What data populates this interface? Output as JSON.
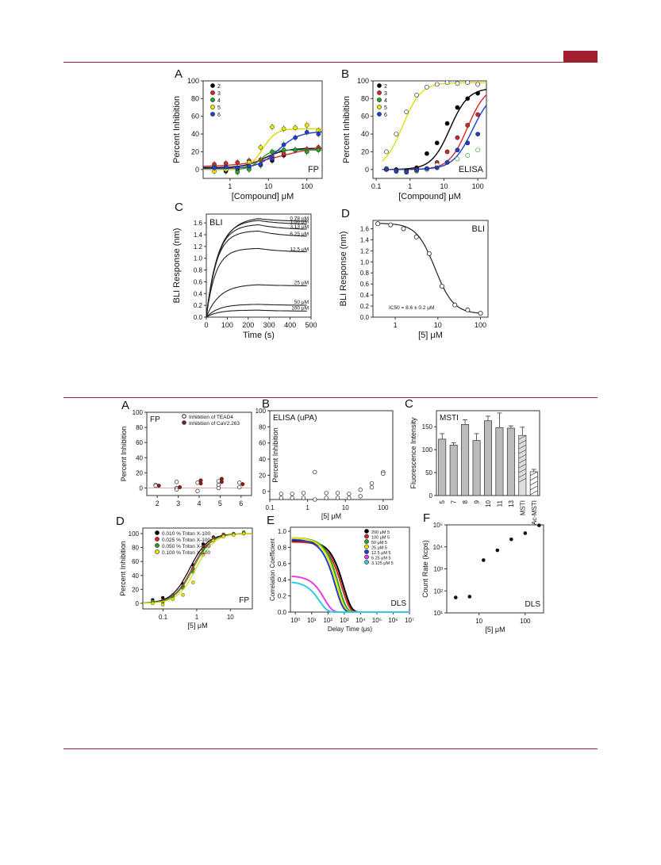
{
  "colors": {
    "accent": "#a11f2e",
    "rule": "#9b2335"
  },
  "figure_top": {
    "A": {
      "letter": "A",
      "ylabel": "Percent Inhibition",
      "xlabel": "[Compound] μM",
      "tag": "FP",
      "xticks": [
        "1",
        "10",
        "100"
      ],
      "yticks": [
        "0",
        "20",
        "40",
        "60",
        "80",
        "100"
      ],
      "legend": [
        "2",
        "3",
        "4",
        "5",
        "6"
      ]
    },
    "B": {
      "letter": "B",
      "ylabel": "Percent Inhibition",
      "xlabel": "[Compound] μM",
      "tag": "ELISA",
      "xticks": [
        "0.1",
        "1",
        "10",
        "100"
      ],
      "yticks": [
        "0",
        "20",
        "40",
        "60",
        "80",
        "100"
      ],
      "legend": [
        "2",
        "3",
        "4",
        "5",
        "6"
      ]
    },
    "C": {
      "letter": "C",
      "ylabel": "BLI Response (nm)",
      "xlabel": "Time (s)",
      "tag": "BLI",
      "xticks": [
        "0",
        "100",
        "200",
        "300",
        "400",
        "500"
      ],
      "yticks": [
        "0.0",
        "0.2",
        "0.4",
        "0.6",
        "0.8",
        "1.0",
        "1.2",
        "1.4",
        "1.6"
      ],
      "curve_labels": [
        "0.78 μM",
        "1.56 μM",
        "3.13 μM",
        "6.25 μM",
        "12.5 μM",
        "25 μM",
        "50 μM",
        "100 μM"
      ]
    },
    "D": {
      "letter": "D",
      "ylabel": "BLI Response (nm)",
      "xlabel": "[5] μM",
      "tag": "BLI",
      "xticks": [
        "1",
        "10",
        "100"
      ],
      "yticks": [
        "0.0",
        "0.2",
        "0.4",
        "0.6",
        "0.8",
        "1.0",
        "1.2",
        "1.4",
        "1.6"
      ],
      "annotation": "IC50 = 8.6 ± 0.2 μM"
    }
  },
  "figure_bottom": {
    "A": {
      "letter": "A",
      "ylabel": "Percent Inhibition",
      "tag": "FP",
      "xticks": [
        "2",
        "3",
        "4",
        "5",
        "6"
      ],
      "yticks": [
        "0",
        "20",
        "40",
        "60",
        "80",
        "100"
      ],
      "legend": [
        "Inhibition of TEAD4",
        "Inhibition of CaV2.263"
      ]
    },
    "B": {
      "letter": "B",
      "ylabel": "Percent Inhibition",
      "xlabel": "[5] μM",
      "tag": "ELISA (uPA)",
      "xticks": [
        "0.1",
        "1",
        "10",
        "100"
      ],
      "yticks": [
        "0",
        "20",
        "40",
        "60",
        "80",
        "100"
      ]
    },
    "C": {
      "letter": "C",
      "ylabel": "Fluorescence Intensity",
      "tag": "MSTI",
      "yticks": [
        "0",
        "50",
        "100",
        "150"
      ],
      "categories": [
        "5",
        "7",
        "8",
        "9",
        "10",
        "11",
        "13",
        "MSTI",
        "Ac-MSTI"
      ]
    },
    "D": {
      "letter": "D",
      "ylabel": "Percent Inhibition",
      "xlabel": "[5] μM",
      "tag": "FP",
      "xticks": [
        "0.1",
        "1",
        "10"
      ],
      "yticks": [
        "0",
        "20",
        "40",
        "60",
        "80",
        "100"
      ],
      "legend": [
        "0.010 % Triton X-100",
        "0.025 % Triton X-100",
        "0.050 % Triton X-100",
        "0.100 % Triton X-100"
      ]
    },
    "E": {
      "letter": "E",
      "ylabel": "Correlation Coefficient",
      "xlabel": "Delay Time (μs)",
      "tag": "DLS",
      "xticks": [
        "10⁰",
        "10¹",
        "10²",
        "10³",
        "10⁴",
        "10⁵",
        "10⁶",
        "10⁷"
      ],
      "yticks": [
        "0.0",
        "0.2",
        "0.4",
        "0.6",
        "0.8",
        "1.0"
      ],
      "legend": [
        "200 μM 5",
        "100 μM 5",
        "50 μM 5",
        "25 μM 5",
        "12.5 μM 5",
        "6.25 μM 5",
        "3.125 μM 5"
      ]
    },
    "F": {
      "letter": "F",
      "ylabel": "Count Rate (kcps)",
      "xlabel": "[5] μM",
      "tag": "DLS",
      "xticks": [
        "10",
        "100"
      ],
      "yticks": [
        "10¹",
        "10²",
        "10³",
        "10⁴",
        "10⁵"
      ]
    }
  },
  "chart_data": [
    {
      "id": "top-A",
      "type": "scatter",
      "xscale": "log",
      "xlim": [
        0.2,
        250
      ],
      "ylim": [
        -10,
        100
      ],
      "xlabel": "[Compound] μM",
      "ylabel": "Percent Inhibition",
      "series": [
        {
          "name": "2",
          "color": "#000000",
          "x": [
            0.39,
            0.78,
            1.56,
            3.13,
            6.25,
            12.5,
            25,
            50,
            100,
            200
          ],
          "y": [
            4,
            -2,
            0,
            2,
            5,
            10,
            16,
            22,
            22,
            24
          ]
        },
        {
          "name": "3",
          "color": "#d62728",
          "x": [
            0.39,
            0.78,
            1.56,
            3.13,
            6.25,
            12.5,
            25,
            50,
            100,
            200
          ],
          "y": [
            6,
            7,
            8,
            10,
            11,
            15,
            18,
            22,
            23,
            25
          ]
        },
        {
          "name": "4",
          "color": "#2ca02c",
          "x": [
            0.39,
            0.78,
            1.56,
            3.13,
            6.25,
            12.5,
            25,
            50,
            100,
            200
          ],
          "y": [
            3,
            0,
            -3,
            0,
            5,
            20,
            22,
            22,
            20,
            22
          ]
        },
        {
          "name": "5",
          "color": "#e8e800",
          "x": [
            0.39,
            0.78,
            1.56,
            3.13,
            6.25,
            12.5,
            25,
            50,
            100,
            200
          ],
          "y": [
            -2,
            0,
            2,
            8,
            25,
            48,
            46,
            47,
            50,
            44
          ]
        },
        {
          "name": "6",
          "color": "#1f3fd1",
          "x": [
            0.39,
            0.78,
            1.56,
            3.13,
            6.25,
            12.5,
            25,
            50,
            100,
            200
          ],
          "y": [
            2,
            3,
            2,
            4,
            6,
            12,
            28,
            36,
            42,
            40
          ]
        }
      ]
    },
    {
      "id": "top-B",
      "type": "scatter",
      "xscale": "log",
      "xlim": [
        0.08,
        180
      ],
      "ylim": [
        -10,
        100
      ],
      "xlabel": "[Compound] μM",
      "ylabel": "Percent Inhibition",
      "series": [
        {
          "name": "2",
          "color": "#000000",
          "x": [
            0.2,
            0.39,
            0.78,
            1.56,
            3.13,
            6.25,
            12.5,
            25,
            50,
            100
          ],
          "y": [
            0,
            0,
            -1,
            2,
            18,
            30,
            52,
            70,
            80,
            86
          ]
        },
        {
          "name": "3",
          "color": "#d62728",
          "x": [
            0.2,
            0.39,
            0.78,
            1.56,
            3.13,
            6.25,
            12.5,
            25,
            50,
            100
          ],
          "y": [
            0,
            -1,
            -2,
            0,
            1,
            8,
            20,
            36,
            50,
            62
          ]
        },
        {
          "name": "4",
          "color": "#2ca02c",
          "x": [
            0.2,
            0.39,
            0.78,
            1.56,
            3.13,
            6.25,
            12.5,
            25,
            50,
            100
          ],
          "y": [
            1,
            -2,
            -3,
            -2,
            0,
            5,
            8,
            12,
            16,
            22
          ]
        },
        {
          "name": "5",
          "color": "#e8e800",
          "x": [
            0.2,
            0.39,
            0.78,
            1.56,
            3.13,
            6.25,
            12.5,
            25,
            50,
            100
          ],
          "y": [
            20,
            40,
            65,
            84,
            93,
            96,
            98,
            97,
            98,
            96
          ]
        },
        {
          "name": "6",
          "color": "#1f3fd1",
          "x": [
            0.2,
            0.39,
            0.78,
            1.56,
            3.13,
            6.25,
            12.5,
            25,
            50,
            100
          ],
          "y": [
            1,
            -2,
            -3,
            -1,
            1,
            2,
            8,
            22,
            30,
            40
          ]
        }
      ]
    },
    {
      "id": "top-C",
      "type": "line",
      "xlim": [
        0,
        500
      ],
      "ylim": [
        0,
        1.75
      ],
      "xlabel": "Time (s)",
      "ylabel": "BLI Response (nm)",
      "series": [
        {
          "name": "0.78 μM",
          "plateau": 1.7,
          "end": 1.62
        },
        {
          "name": "1.56 μM",
          "plateau": 1.66,
          "end": 1.57
        },
        {
          "name": "3.13 μM",
          "plateau": 1.58,
          "end": 1.48
        },
        {
          "name": "6.25 μM",
          "plateau": 1.47,
          "end": 1.36
        },
        {
          "name": "12.5 μM",
          "plateau": 1.17,
          "end": 1.1
        },
        {
          "name": "25 μM",
          "plateau": 0.56,
          "end": 0.53
        },
        {
          "name": "50 μM",
          "plateau": 0.22,
          "end": 0.2
        },
        {
          "name": "100 μM",
          "plateau": 0.12,
          "end": 0.1
        }
      ]
    },
    {
      "id": "top-D",
      "type": "scatter",
      "xscale": "log",
      "xlim": [
        0.3,
        150
      ],
      "ylim": [
        0,
        1.75
      ],
      "xlabel": "[5] μM",
      "ylabel": "BLI Response (nm)",
      "x": [
        0.39,
        0.78,
        1.56,
        3.13,
        6.25,
        12.5,
        25,
        50,
        100
      ],
      "y": [
        1.69,
        1.67,
        1.6,
        1.45,
        1.15,
        0.56,
        0.22,
        0.13,
        0.07
      ]
    },
    {
      "id": "bottom-A",
      "type": "scatter",
      "xlim": [
        1.5,
        6.5
      ],
      "ylim": [
        -10,
        100
      ],
      "categories": [
        "2",
        "3",
        "4",
        "5",
        "6"
      ],
      "ylabel": "Percent Inhibition",
      "series": [
        {
          "name": "Inhibition of TEAD4",
          "x": [
            2,
            2,
            3,
            3,
            3,
            4,
            4,
            5,
            5,
            5,
            6,
            6
          ],
          "y": [
            4,
            3,
            8,
            0,
            -2,
            7,
            -4,
            9,
            4,
            0,
            7,
            1
          ]
        },
        {
          "name": "Inhibition of CaV2.263",
          "x": [
            2,
            3,
            4,
            4,
            5,
            5,
            6
          ],
          "y": [
            3,
            1,
            10,
            6,
            12,
            8,
            5
          ]
        }
      ]
    },
    {
      "id": "bottom-B",
      "type": "scatter",
      "xscale": "log",
      "xlim": [
        0.1,
        180
      ],
      "ylim": [
        -10,
        100
      ],
      "xlabel": "[5] μM",
      "ylabel": "Percent Inhibition",
      "x": [
        0.2,
        0.2,
        0.39,
        0.39,
        0.78,
        0.78,
        1.56,
        1.56,
        3.13,
        3.13,
        6.25,
        6.25,
        12.5,
        12.5,
        25,
        25,
        50,
        50,
        100,
        100
      ],
      "y": [
        -3,
        -8,
        -3,
        -8,
        -2,
        -8,
        24,
        -10,
        -2,
        -8,
        -2,
        -8,
        -3,
        -8,
        2,
        -6,
        10,
        5,
        24,
        22
      ]
    },
    {
      "id": "bottom-C",
      "type": "bar",
      "ylim": [
        0,
        185
      ],
      "ylabel": "Fluorescence Intensity",
      "categories": [
        "5",
        "7",
        "8",
        "9",
        "10",
        "11",
        "13",
        "MSTI",
        "Ac-MSTI"
      ],
      "values": [
        123,
        110,
        155,
        120,
        163,
        148,
        147,
        131,
        52
      ],
      "errors": [
        12,
        5,
        10,
        15,
        10,
        32,
        5,
        18,
        5
      ]
    },
    {
      "id": "bottom-D",
      "type": "scatter",
      "xscale": "log",
      "xlim": [
        0.025,
        45
      ],
      "ylim": [
        -8,
        108
      ],
      "xlabel": "[5] μM",
      "ylabel": "Percent Inhibition",
      "series": [
        {
          "name": "0.010 % Triton X-100",
          "color": "#000000",
          "x": [
            0.049,
            0.098,
            0.195,
            0.39,
            0.78,
            1.56,
            3.13,
            6.25,
            12.5,
            25
          ],
          "y": [
            5,
            8,
            12,
            28,
            55,
            85,
            95,
            98,
            99,
            100
          ]
        },
        {
          "name": "0.025 % Triton X-100",
          "color": "#d62728",
          "x": [
            0.049,
            0.098,
            0.195,
            0.39,
            0.78,
            1.56,
            3.13,
            6.25,
            12.5,
            25
          ],
          "y": [
            2,
            4,
            12,
            25,
            50,
            82,
            94,
            99,
            100,
            101
          ]
        },
        {
          "name": "0.050 % Triton X-100",
          "color": "#2ca02c",
          "x": [
            0.049,
            0.098,
            0.195,
            0.39,
            0.78,
            1.56,
            3.13,
            6.25,
            12.5,
            25
          ],
          "y": [
            3,
            2,
            10,
            22,
            45,
            78,
            92,
            97,
            100,
            102
          ]
        },
        {
          "name": "0.100 % Triton X-100",
          "color": "#e8e800",
          "x": [
            0.049,
            0.098,
            0.195,
            0.39,
            0.78,
            1.56,
            3.13,
            6.25,
            12.5,
            25
          ],
          "y": [
            0,
            -2,
            6,
            12,
            30,
            70,
            90,
            96,
            98,
            100
          ]
        }
      ]
    },
    {
      "id": "bottom-E",
      "type": "line",
      "xscale": "log",
      "xlim": [
        0.5,
        10000000.0
      ],
      "ylim": [
        0,
        1.05
      ],
      "xlabel": "Delay Time (μs)",
      "ylabel": "Correlation Coefficient",
      "series": [
        {
          "name": "200 μM 5",
          "color": "#000000",
          "amp": 0.88,
          "tau": 900
        },
        {
          "name": "100 μM 5",
          "color": "#d62728",
          "amp": 0.87,
          "tau": 700
        },
        {
          "name": "50 μM 5",
          "color": "#2ca02c",
          "amp": 0.92,
          "tau": 450
        },
        {
          "name": "25 μM 5",
          "color": "#e8e800",
          "amp": 0.92,
          "tau": 350
        },
        {
          "name": "12.5 μM 5",
          "color": "#1f3fd1",
          "amp": 0.9,
          "tau": 280
        },
        {
          "name": "6.25 μM 5",
          "color": "#e040e0",
          "amp": 0.45,
          "tau": 60
        },
        {
          "name": "3.125 μM 5",
          "color": "#33c8e8",
          "amp": 0.38,
          "tau": 30
        }
      ]
    },
    {
      "id": "bottom-F",
      "type": "scatter",
      "xscale": "log",
      "yscale": "log",
      "xlim": [
        2,
        250
      ],
      "ylim": [
        10,
        100000
      ],
      "xlabel": "[5] μM",
      "ylabel": "Count Rate (kcps)",
      "x": [
        3.125,
        6.25,
        12.5,
        25,
        50,
        100,
        200
      ],
      "y": [
        50,
        55,
        2500,
        7000,
        22000,
        42000,
        95000
      ]
    }
  ]
}
